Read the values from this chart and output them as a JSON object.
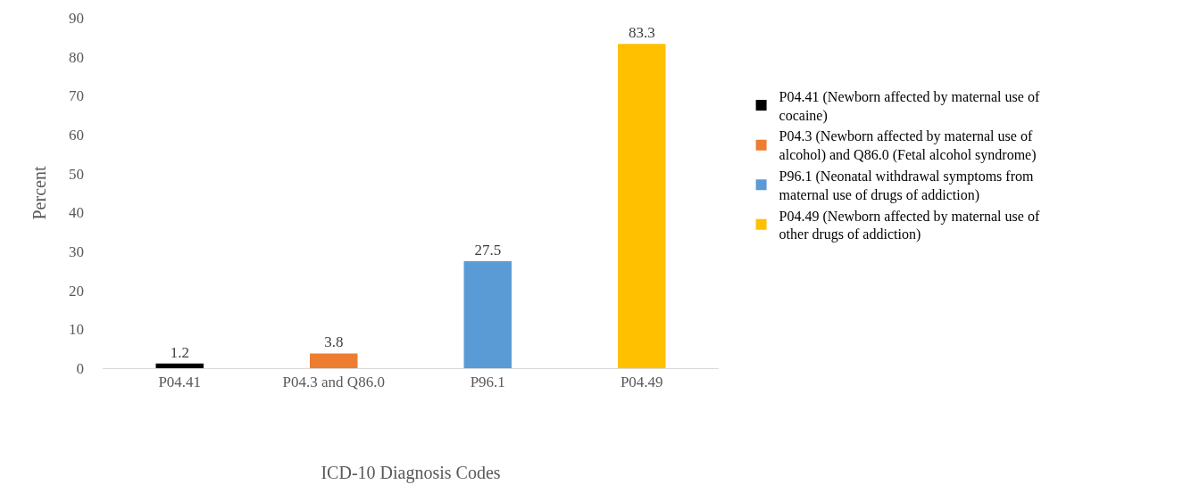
{
  "chart_data": {
    "type": "bar",
    "xlabel": "ICD-10 Diagnosis Codes",
    "ylabel": "Percent",
    "categories": [
      "P04.41",
      "P04.3 and Q86.0",
      "P96.1",
      "P04.49"
    ],
    "series": [
      {
        "name": "P04.41 (Newborn affected by maternal use of cocaine)",
        "color": "#000000",
        "values": [
          1.2,
          null,
          null,
          null
        ]
      },
      {
        "name": "P04.3 (Newborn affected by maternal use of alcohol) and Q86.0 (Fetal alcohol syndrome)",
        "color": "#ed7d31",
        "values": [
          null,
          3.8,
          null,
          null
        ]
      },
      {
        "name": "P96.1 (Neonatal withdrawal symptoms from maternal use of drugs of addiction)",
        "color": "#5b9bd5",
        "values": [
          null,
          null,
          27.5,
          null
        ]
      },
      {
        "name": "P04.49 (Newborn affected by maternal use of other drugs of addiction)",
        "color": "#ffc000",
        "values": [
          null,
          null,
          null,
          83.3
        ]
      }
    ],
    "ylim": [
      0,
      90
    ],
    "yticks": [
      0,
      10,
      20,
      30,
      40,
      50,
      60,
      70,
      80,
      90
    ],
    "legend": "right",
    "data_labels": true
  }
}
